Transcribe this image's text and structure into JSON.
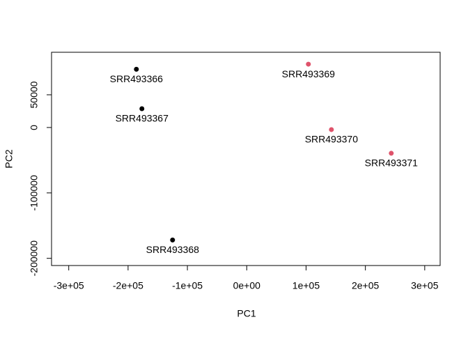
{
  "chart_data": {
    "type": "scatter",
    "x_label": "PC1",
    "y_label": "PC2",
    "x": [
      -186000,
      -176700,
      -125000,
      103900,
      142700,
      243600
    ],
    "values": [
      89000,
      28700,
      -172000,
      96800,
      -3200,
      -39400
    ],
    "point_labels": [
      "SRR493366",
      "SRR493367",
      "SRR493368",
      "SRR493369",
      "SRR493370",
      "SRR493371"
    ],
    "point_colors": [
      "#000000",
      "#000000",
      "#000000",
      "#DF536B",
      "#DF536B",
      "#DF536B"
    ],
    "xlim": [
      -329000,
      326000
    ],
    "ylim": [
      -211000,
      115000
    ],
    "xticks": [
      {
        "value": -300000,
        "label": "-3e+05"
      },
      {
        "value": -200000,
        "label": "-2e+05"
      },
      {
        "value": -100000,
        "label": "-1e+05"
      },
      {
        "value": 0,
        "label": "0e+00"
      },
      {
        "value": 100000,
        "label": "1e+05"
      },
      {
        "value": 200000,
        "label": "2e+05"
      },
      {
        "value": 300000,
        "label": "3e+05"
      }
    ],
    "yticks": [
      -200000,
      -100000,
      0,
      50000
    ]
  }
}
